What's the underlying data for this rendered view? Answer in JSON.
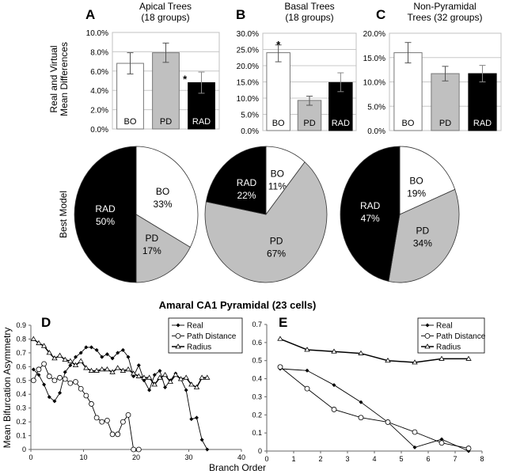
{
  "figure": {
    "panel_letters": [
      "A",
      "B",
      "C",
      "D",
      "E"
    ],
    "bar_ylabel": [
      "Real and Virtual",
      "Mean Differences"
    ],
    "pie_ylabel": "Best Model",
    "main_title": "Amaral CA1 Pyramidal (23 cells)",
    "line_ylabel": "Mean Bifurcation Asymmetry",
    "line_xlabel": "Branch Order"
  },
  "colors": {
    "BO": "#ffffff",
    "PD": "#c0c0c0",
    "RAD": "#000000"
  },
  "chart_data": [
    {
      "type": "bar",
      "panel": "A",
      "title": [
        "Apical Trees",
        "(18 groups)"
      ],
      "categories": [
        "BO",
        "PD",
        "RAD"
      ],
      "values": [
        6.8,
        7.9,
        4.8
      ],
      "error_low": [
        5.7,
        6.9,
        3.7
      ],
      "error_high": [
        7.9,
        8.9,
        5.9
      ],
      "significance": {
        "category": "RAD",
        "mark": "*"
      },
      "ylim": [
        0,
        10
      ],
      "yticks": [
        0,
        2,
        4,
        6,
        8,
        10
      ],
      "ytick_labels": [
        "0.0%",
        "2.0%",
        "4.0%",
        "6.0%",
        "8.0%",
        "10.0%"
      ],
      "grid": true
    },
    {
      "type": "bar",
      "panel": "B",
      "title": [
        "Basal Trees",
        "(18 groups)"
      ],
      "categories": [
        "BO",
        "PD",
        "RAD"
      ],
      "values": [
        24.0,
        9.3,
        14.8
      ],
      "error_low": [
        21.2,
        7.8,
        12.0
      ],
      "error_high": [
        26.4,
        10.6,
        17.8
      ],
      "significance": {
        "category": "BO",
        "mark": "*"
      },
      "ylim": [
        0,
        30
      ],
      "yticks": [
        0,
        5,
        10,
        15,
        20,
        25,
        30
      ],
      "ytick_labels": [
        "0.0%",
        "5.0%",
        "10.0%",
        "15.0%",
        "20.0%",
        "25.0%",
        "30.0%"
      ],
      "grid": true
    },
    {
      "type": "bar",
      "panel": "C",
      "title": [
        "Non-Pyramidal",
        "Trees (32 groups)"
      ],
      "categories": [
        "BO",
        "PD",
        "RAD"
      ],
      "values": [
        16.0,
        11.7,
        11.7
      ],
      "error_low": [
        13.9,
        10.2,
        10.0
      ],
      "error_high": [
        18.1,
        13.2,
        13.4
      ],
      "significance": null,
      "ylim": [
        0,
        20
      ],
      "yticks": [
        0,
        5,
        10,
        15,
        20
      ],
      "ytick_labels": [
        "0.0%",
        "5.0%",
        "10.0%",
        "15.0%",
        "20.0%"
      ],
      "grid": true
    },
    {
      "type": "pie",
      "panel": "A",
      "slices": [
        {
          "label": "BO",
          "value": 33,
          "text": "33%"
        },
        {
          "label": "PD",
          "value": 17,
          "text": "17%"
        },
        {
          "label": "RAD",
          "value": 50,
          "text": "50%"
        }
      ]
    },
    {
      "type": "pie",
      "panel": "B",
      "slices": [
        {
          "label": "BO",
          "value": 11,
          "text": "11%"
        },
        {
          "label": "PD",
          "value": 67,
          "text": "67%"
        },
        {
          "label": "RAD",
          "value": 22,
          "text": "22%"
        }
      ]
    },
    {
      "type": "pie",
      "panel": "C",
      "slices": [
        {
          "label": "BO",
          "value": 19,
          "text": "19%"
        },
        {
          "label": "PD",
          "value": 34,
          "text": "34%"
        },
        {
          "label": "RAD",
          "value": 47,
          "text": "47%"
        }
      ]
    },
    {
      "type": "line",
      "panel": "D",
      "xlim": [
        0,
        40
      ],
      "ylim": [
        0,
        0.9
      ],
      "xticks": [
        0,
        10,
        20,
        30,
        40
      ],
      "yticks": [
        0,
        0.1,
        0.2,
        0.3,
        0.4,
        0.5,
        0.6,
        0.7,
        0.8,
        0.9
      ],
      "xtick_labels": [
        "0",
        "10",
        "20",
        "30",
        "40"
      ],
      "ytick_labels": [
        "0",
        "0.1",
        "0.2",
        "0.3",
        "0.4",
        "0.5",
        "0.6",
        "0.7",
        "0.8",
        "0.9"
      ],
      "legend": "top-right",
      "series": [
        {
          "name": "Real",
          "marker": "diamond",
          "x0": 0.5,
          "values": [
            0.58,
            0.54,
            0.47,
            0.38,
            0.35,
            0.41,
            0.56,
            0.61,
            0.67,
            0.7,
            0.74,
            0.74,
            0.72,
            0.67,
            0.69,
            0.66,
            0.7,
            0.72,
            0.67,
            0.53,
            0.61,
            0.5,
            0.43,
            0.54,
            0.57,
            0.45,
            0.5,
            0.55,
            0.51,
            0.43,
            0.22,
            0.23,
            0.07,
            0.0
          ]
        },
        {
          "name": "Path Distance",
          "marker": "circle",
          "x0": 0.5,
          "values": [
            0.5,
            0.58,
            0.62,
            0.53,
            0.5,
            0.52,
            0.51,
            0.48,
            0.49,
            0.44,
            0.39,
            0.33,
            0.23,
            0.2,
            0.21,
            0.11,
            0.11,
            0.2,
            0.25,
            0.0,
            0.0
          ]
        },
        {
          "name": "Radius",
          "marker": "triangle",
          "x0": 0.5,
          "values": [
            0.8,
            0.77,
            0.75,
            0.7,
            0.66,
            0.68,
            0.65,
            0.64,
            0.61,
            0.64,
            0.59,
            0.57,
            0.57,
            0.58,
            0.58,
            0.56,
            0.59,
            0.57,
            0.58,
            0.55,
            0.53,
            0.52,
            0.52,
            0.47,
            0.52,
            0.54,
            0.49,
            0.54,
            0.51,
            0.52,
            0.47,
            0.45,
            0.52,
            0.52
          ]
        }
      ]
    },
    {
      "type": "line",
      "panel": "E",
      "xlim": [
        0,
        8
      ],
      "ylim": [
        0,
        0.7
      ],
      "xticks": [
        0,
        1,
        2,
        3,
        4,
        5,
        6,
        7,
        8
      ],
      "yticks": [
        0,
        0.1,
        0.2,
        0.3,
        0.4,
        0.5,
        0.6,
        0.7
      ],
      "xtick_labels": [
        "0",
        "1",
        "2",
        "3",
        "4",
        "5",
        "6",
        "7",
        "8"
      ],
      "ytick_labels": [
        "0",
        "0.1",
        "0.2",
        "0.3",
        "0.4",
        "0.5",
        "0.6",
        "0.7"
      ],
      "legend": "top-right",
      "series": [
        {
          "name": "Real",
          "marker": "diamond",
          "x0": 0.5,
          "values": [
            0.455,
            0.445,
            0.365,
            0.27,
            0.16,
            0.02,
            0.065,
            0.0
          ]
        },
        {
          "name": "Path Distance",
          "marker": "circle",
          "x0": 0.5,
          "values": [
            0.465,
            0.345,
            0.23,
            0.185,
            0.16,
            0.105,
            0.045,
            0.015
          ]
        },
        {
          "name": "Radius",
          "marker": "triangle",
          "x0": 0.5,
          "values": [
            0.62,
            0.56,
            0.55,
            0.54,
            0.5,
            0.49,
            0.51,
            0.51
          ]
        }
      ]
    }
  ]
}
